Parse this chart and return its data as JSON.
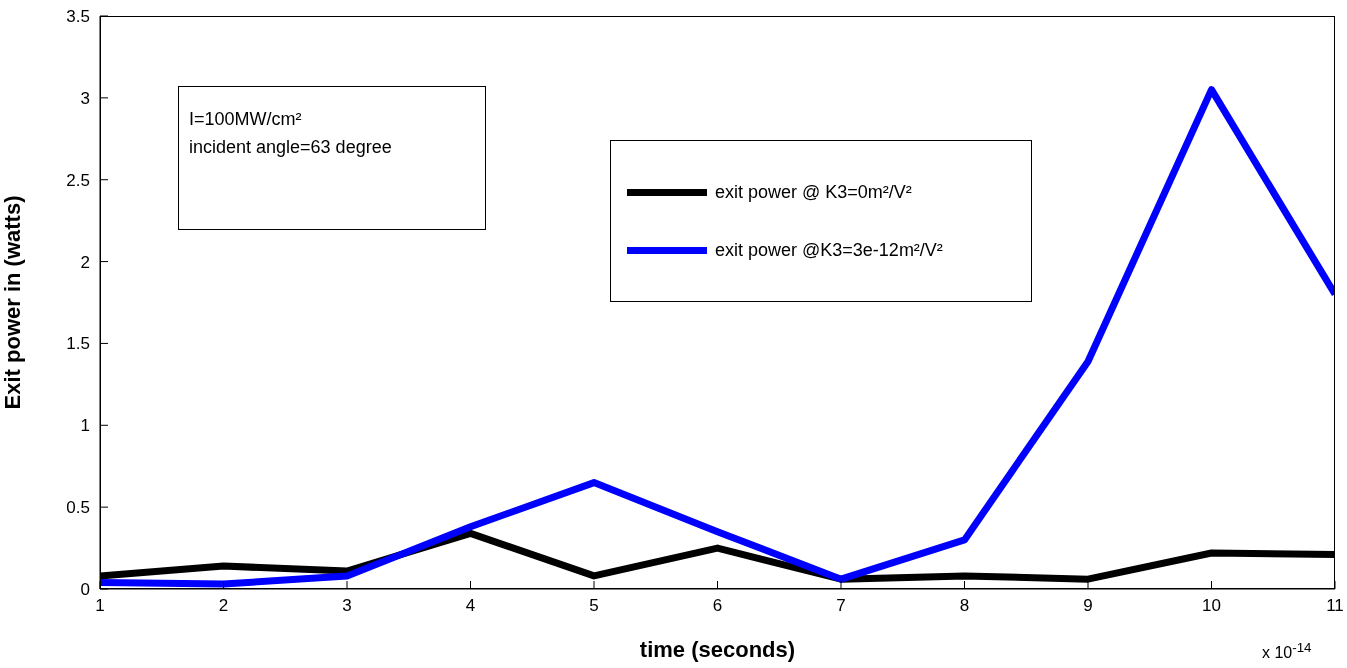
{
  "chart_data": {
    "type": "line",
    "xlabel": "time (seconds)",
    "ylabel": "Exit  power in (watts)",
    "x": [
      1,
      2,
      3,
      4,
      5,
      6,
      7,
      8,
      9,
      10,
      11
    ],
    "series": [
      {
        "name": "exit power @ K3=0m²/V²",
        "color": "#000000",
        "values": [
          0.08,
          0.14,
          0.11,
          0.34,
          0.08,
          0.25,
          0.06,
          0.08,
          0.06,
          0.22,
          0.21
        ]
      },
      {
        "name": "exit power @K3=3e-12m²/V²",
        "color": "#0000ff",
        "values": [
          0.04,
          0.03,
          0.08,
          0.38,
          0.65,
          0.35,
          0.06,
          0.3,
          1.39,
          3.05,
          1.8
        ]
      }
    ],
    "xlim": [
      1,
      11
    ],
    "xticks": [
      1,
      2,
      3,
      4,
      5,
      6,
      7,
      8,
      9,
      10,
      11
    ],
    "ylim": [
      0,
      3.5
    ],
    "yticks": [
      0,
      0.5,
      1,
      1.5,
      2,
      2.5,
      3,
      3.5
    ],
    "annotations": [
      "I=100MW/cm²\nincident angle=63 degree",
      "x 10$^{-14}$"
    ],
    "legend": "top right",
    "grid": false,
    "marker": "none",
    "line_style": "solid"
  }
}
